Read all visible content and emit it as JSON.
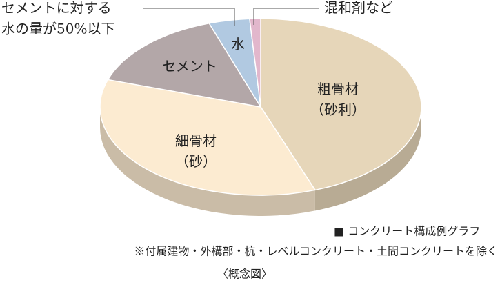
{
  "chart_data": {
    "type": "pie",
    "categories": [
      "粗骨材（砂利）",
      "細骨材（砂）",
      "セメント",
      "水",
      "混和剤など"
    ],
    "values": [
      44.5,
      35.5,
      14.8,
      4.1,
      1.1
    ],
    "colors": [
      "#e6d6b9",
      "#fcebd1",
      "#b3a7a8",
      "#b1c9e1",
      "#e2b7cc"
    ],
    "annotation": [
      "セメントに対する",
      "水の量が50%以下"
    ],
    "notes": [
      "■ コンクリート構成例グラフ",
      "※付属建物・外構部・杭・レベルコンクリート・土間コンクリートを除く",
      "〈概念図〉"
    ]
  }
}
